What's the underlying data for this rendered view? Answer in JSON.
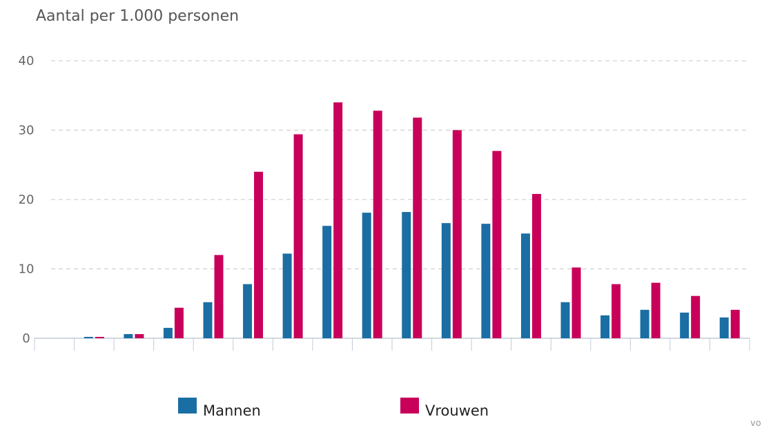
{
  "chart_data": {
    "type": "bar",
    "title": "Aantal per 1.000 personen",
    "xlabel": "",
    "ylabel": "",
    "ylim": [
      0,
      40
    ],
    "yticks": [
      0,
      10,
      20,
      30,
      40
    ],
    "grid": true,
    "legend_position": "bottom",
    "categories": [
      "",
      "",
      "",
      "",
      "",
      "",
      "",
      "",
      "",
      "",
      "",
      "",
      "",
      "",
      "",
      "",
      "",
      ""
    ],
    "series": [
      {
        "name": "Mannen",
        "color": "#1a6ea3",
        "values": [
          0.0,
          0.2,
          0.6,
          1.5,
          5.2,
          7.8,
          12.2,
          16.2,
          18.1,
          18.2,
          16.6,
          16.5,
          15.1,
          5.2,
          3.3,
          4.1,
          3.7,
          3.0
        ]
      },
      {
        "name": "Vrouwen",
        "color": "#c8005a",
        "values": [
          0.0,
          0.2,
          0.6,
          4.4,
          12.0,
          24.0,
          29.4,
          34.0,
          32.8,
          31.8,
          30.0,
          27.0,
          20.8,
          10.2,
          7.8,
          8.0,
          6.1,
          4.1
        ]
      }
    ]
  },
  "footer_note": "vo"
}
